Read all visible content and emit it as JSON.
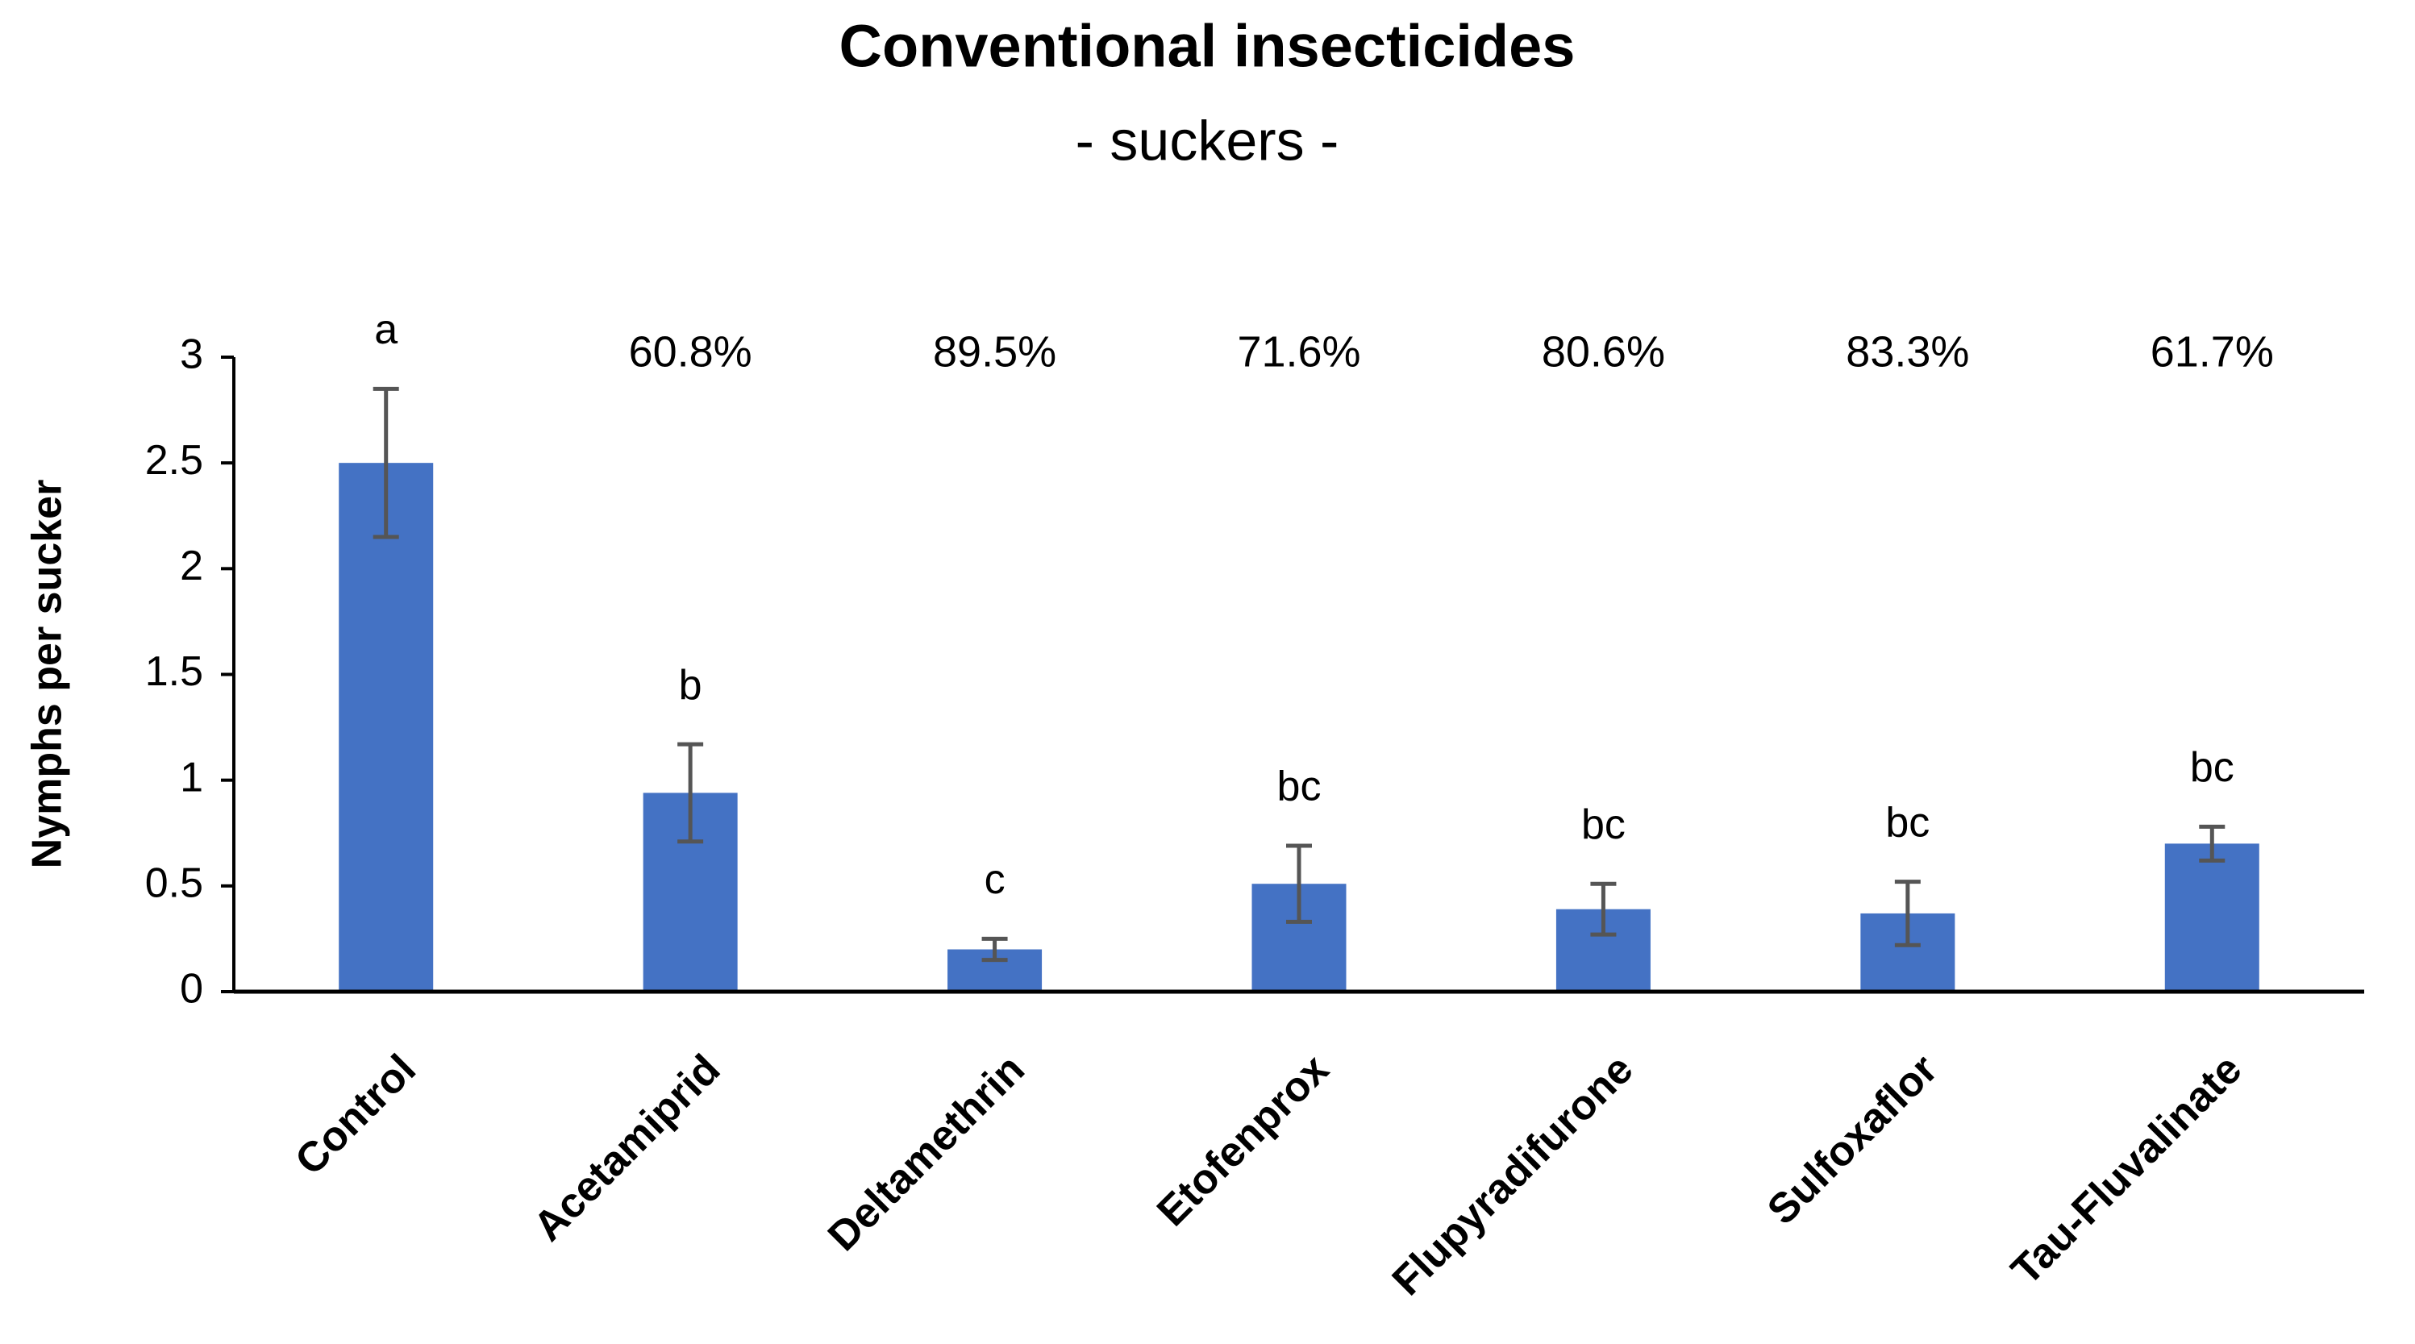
{
  "chart_data": {
    "type": "bar",
    "title": "Conventional insecticides",
    "subtitle": "- suckers -",
    "y_label": "Nymphs per sucker",
    "categories": [
      "Control",
      "Acetamiprid",
      "Deltamethrin",
      "Etofenprox",
      "Flupyradifurone",
      "Sulfoxaflor",
      "Tau-Fluvalinate"
    ],
    "values": [
      2.5,
      0.94,
      0.2,
      0.51,
      0.39,
      0.37,
      0.7
    ],
    "errors": [
      0.35,
      0.23,
      0.05,
      0.18,
      0.12,
      0.15,
      0.08
    ],
    "letters": [
      "a",
      "b",
      "c",
      "bc",
      "bc",
      "bc",
      "bc"
    ],
    "reductions": [
      null,
      "60.8%",
      "89.5%",
      "71.6%",
      "80.6%",
      "83.3%",
      "61.7%"
    ],
    "color": "#4472c4",
    "error_color": "#555555",
    "ylim": [
      0,
      3
    ],
    "yticks": [
      0,
      0.5,
      1,
      1.5,
      2,
      2.5,
      3
    ],
    "grid": false
  }
}
